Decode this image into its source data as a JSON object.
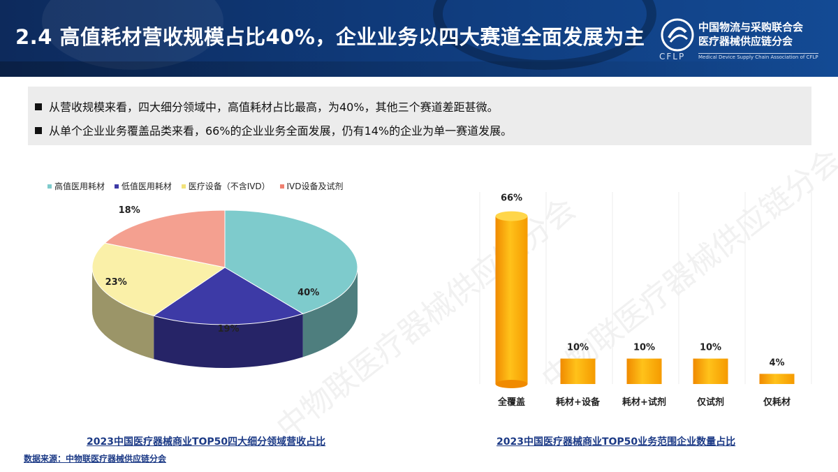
{
  "header": {
    "title": "2.4 高值耗材营收规模占比40%，企业业务以四大赛道全面发展为主",
    "org_line1": "中国物流与采购联合会",
    "org_line2": "医疗器械供应链分会",
    "org_abbr": "CFLP",
    "org_en": "Medical Device Supply Chain Association of CFLP",
    "bg_color": "#0f3a7a"
  },
  "bullets": [
    "从营收规模来看，四大细分领域中，高值耗材占比最高，为40%，其他三个赛道差距甚微。",
    "从单个企业业务覆盖品类来看，66%的企业业务全面发展，仍有14%的企业为单一赛道发展。"
  ],
  "watermark": "中物联医疗器械供应链分会",
  "source": "数据来源：中物联医疗器械供应链分会",
  "chart_data": [
    {
      "type": "pie",
      "title": "2023中国医疗器械商业TOP50四大细分领域营收占比",
      "legend_position": "top",
      "labels": [
        "高值医用耗材",
        "低值医用耗材",
        "医疗设备（不含IVD）",
        "IVD设备及试剂"
      ],
      "values": [
        40,
        19,
        23,
        18
      ],
      "data_labels": [
        "40%",
        "19%",
        "23%",
        "18%"
      ],
      "colors": [
        "#7ecbcc",
        "#3d3aa6",
        "#faf0a8",
        "#f4a090"
      ]
    },
    {
      "type": "bar",
      "title": "2023中国医疗器械商业TOP50业务范围企业数量占比",
      "categories": [
        "全覆盖",
        "耗材+设备",
        "耗材+试剂",
        "仅试剂",
        "仅耗材"
      ],
      "values": [
        66,
        10,
        10,
        10,
        4
      ],
      "data_labels": [
        "66%",
        "10%",
        "10%",
        "10%",
        "4%"
      ],
      "ylim": [
        0,
        70
      ],
      "grid": false,
      "color": "#f7a800"
    }
  ]
}
